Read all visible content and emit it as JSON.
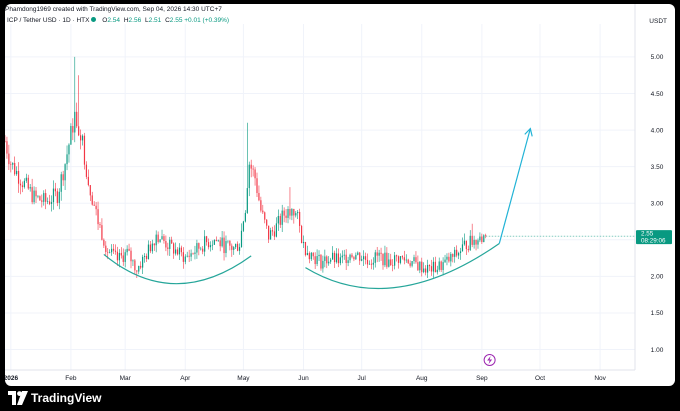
{
  "header": {
    "attribution": "Phamdong1969 created with TradingView.com, Sep 04, 2026 14:30 UTC+7",
    "symbol": "ICP / Tether USD · 1D · HTX",
    "o_label": "O",
    "o_value": "2.54",
    "h_label": "H",
    "h_value": "2.56",
    "l_label": "L",
    "l_value": "2.51",
    "c_label": "C",
    "c_value": "2.55",
    "change": "+0.01 (+0.39%)"
  },
  "axis": {
    "unit": "USDT",
    "last_price": "2.55",
    "countdown": "08:29:06"
  },
  "footer": {
    "brand": "TradingView"
  },
  "colors": {
    "up": "#089981",
    "down": "#f23645",
    "arc": "#26a69a",
    "arrow": "#22b3d6",
    "grid": "#f0f3fa"
  },
  "icons": {
    "lightning": "lightning-icon",
    "logo": "tradingview-logo-icon"
  },
  "chart_data": {
    "type": "candlestick",
    "y_ticks": [
      1.0,
      1.5,
      2.0,
      2.5,
      3.0,
      3.5,
      4.0,
      4.5,
      5.0
    ],
    "y_tick_labels": [
      "1.00",
      "1.50",
      "2.00",
      "2.50",
      "3.00",
      "3.50",
      "4.00",
      "4.50",
      "5.00"
    ],
    "ylim": [
      0.72,
      5.45
    ],
    "x_tick_labels": [
      "2026",
      "Feb",
      "Mar",
      "Apr",
      "May",
      "Jun",
      "Jul",
      "Aug",
      "Sep",
      "Oct",
      "Nov"
    ],
    "x_tick_days": [
      0,
      31,
      59,
      90,
      120,
      151,
      181,
      212,
      243,
      273,
      304
    ],
    "xlim": [
      -3,
      322
    ],
    "last_close": 2.55,
    "keypoints": [
      [
        -3,
        3.85
      ],
      [
        0,
        3.55
      ],
      [
        6,
        3.3
      ],
      [
        12,
        3.08
      ],
      [
        18,
        3.02
      ],
      [
        24,
        3.12
      ],
      [
        28,
        3.55
      ],
      [
        33,
        4.2
      ],
      [
        36,
        4.0
      ],
      [
        40,
        3.3
      ],
      [
        45,
        2.75
      ],
      [
        50,
        2.35
      ],
      [
        55,
        2.22
      ],
      [
        60,
        2.32
      ],
      [
        65,
        2.1
      ],
      [
        70,
        2.3
      ],
      [
        75,
        2.58
      ],
      [
        80,
        2.45
      ],
      [
        85,
        2.35
      ],
      [
        90,
        2.25
      ],
      [
        95,
        2.35
      ],
      [
        100,
        2.45
      ],
      [
        105,
        2.5
      ],
      [
        110,
        2.42
      ],
      [
        115,
        2.38
      ],
      [
        118,
        2.45
      ],
      [
        121,
        2.95
      ],
      [
        123,
        3.55
      ],
      [
        126,
        3.35
      ],
      [
        129,
        2.9
      ],
      [
        133,
        2.55
      ],
      [
        137,
        2.68
      ],
      [
        141,
        2.85
      ],
      [
        145,
        2.95
      ],
      [
        148,
        2.78
      ],
      [
        151,
        2.42
      ],
      [
        155,
        2.3
      ],
      [
        160,
        2.2
      ],
      [
        165,
        2.25
      ],
      [
        170,
        2.2
      ],
      [
        175,
        2.32
      ],
      [
        180,
        2.28
      ],
      [
        185,
        2.22
      ],
      [
        190,
        2.28
      ],
      [
        195,
        2.2
      ],
      [
        200,
        2.25
      ],
      [
        205,
        2.22
      ],
      [
        210,
        2.15
      ],
      [
        215,
        2.1
      ],
      [
        220,
        2.12
      ],
      [
        225,
        2.2
      ],
      [
        230,
        2.3
      ],
      [
        235,
        2.45
      ],
      [
        240,
        2.48
      ],
      [
        245,
        2.55
      ]
    ],
    "spikes": [
      {
        "day": 33,
        "high": 5.0
      },
      {
        "day": 35,
        "high": 4.75
      },
      {
        "day": 122,
        "high": 4.1
      },
      {
        "day": 144,
        "high": 3.22
      },
      {
        "day": 238,
        "high": 2.72
      }
    ],
    "annotations": {
      "arc1": {
        "from": [
          48,
          2.3
        ],
        "to": [
          124,
          2.28
        ],
        "bottom": [
          85,
          1.9
        ]
      },
      "arc2": {
        "from": [
          152,
          2.12
        ],
        "to": [
          252,
          2.45
        ],
        "bottom": [
          199,
          1.85
        ]
      },
      "arrow": {
        "from": [
          252,
          2.45
        ],
        "to": [
          268,
          4.02
        ]
      },
      "lightning_day": 247
    }
  }
}
